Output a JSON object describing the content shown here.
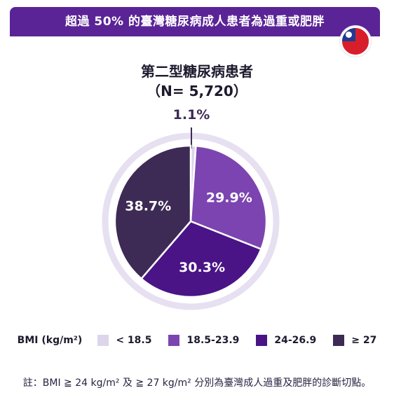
{
  "banner": {
    "title": "超過 50% 的臺灣糖尿病成人患者為過重或肥胖"
  },
  "flag": {
    "name": "taiwan-flag-icon",
    "colors": {
      "red": "#d81e2a",
      "blue": "#1f3a93",
      "white": "#ffffff"
    }
  },
  "chart_data": {
    "type": "pie",
    "title": "第二型糖尿病患者",
    "subtitle": "（N= 5,720）",
    "legend_title": "BMI (kg/m²)",
    "legend_placement": "bottom",
    "slices": [
      {
        "label": "< 18.5",
        "value": 1.1,
        "display": "1.1%",
        "color": "#ddd5ec"
      },
      {
        "label": "18.5-23.9",
        "value": 29.9,
        "display": "29.9%",
        "color": "#7c44b0"
      },
      {
        "label": "24-26.9",
        "value": 30.3,
        "display": "30.3%",
        "color": "#4a1486"
      },
      {
        "label": "≥ 27",
        "value": 38.7,
        "display": "38.7%",
        "color": "#3d2a55"
      }
    ],
    "ring_color": "#e6e0f1"
  },
  "note": "註：BMI ≧ 24 kg/m² 及 ≧ 27 kg/m² 分別為臺灣成人過重及肥胖的診斷切點。"
}
